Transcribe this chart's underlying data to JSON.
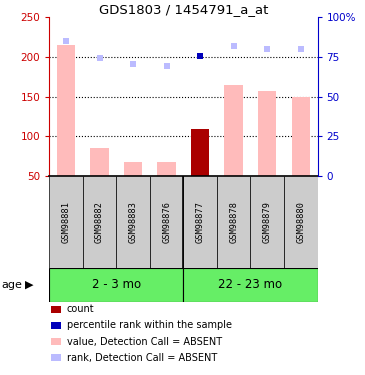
{
  "title": "GDS1803 / 1454791_a_at",
  "samples": [
    "GSM98881",
    "GSM98882",
    "GSM98883",
    "GSM98876",
    "GSM98877",
    "GSM98878",
    "GSM98879",
    "GSM98880"
  ],
  "bar_values": [
    215,
    85,
    68,
    68,
    109,
    165,
    157,
    149
  ],
  "bar_colors": [
    "#ffbbbb",
    "#ffbbbb",
    "#ffbbbb",
    "#ffbbbb",
    "#aa0000",
    "#ffbbbb",
    "#ffbbbb",
    "#ffbbbb"
  ],
  "rank_dots": [
    220,
    198,
    191,
    188,
    201,
    214,
    210,
    210
  ],
  "rank_dot_colors": [
    "#bbbbff",
    "#bbbbff",
    "#bbbbff",
    "#bbbbff",
    "#0000bb",
    "#bbbbff",
    "#bbbbff",
    "#bbbbff"
  ],
  "ylim_left": [
    50,
    250
  ],
  "ylim_right": [
    0,
    100
  ],
  "yticks_left": [
    50,
    100,
    150,
    200,
    250
  ],
  "yticks_right": [
    0,
    25,
    50,
    75,
    100
  ],
  "ytick_labels_left": [
    "50",
    "100",
    "150",
    "200",
    "250"
  ],
  "ytick_labels_right": [
    "0",
    "25",
    "50",
    "75",
    "100%"
  ],
  "hlines": [
    100,
    150,
    200
  ],
  "left_axis_color": "#cc0000",
  "right_axis_color": "#0000cc",
  "group1_label": "2 - 3 mo",
  "group1_count": 4,
  "group2_label": "22 - 23 mo",
  "group2_count": 4,
  "group_color": "#66ee66",
  "age_label": "age",
  "legend": [
    {
      "color": "#aa0000",
      "label": "count"
    },
    {
      "color": "#0000bb",
      "label": "percentile rank within the sample"
    },
    {
      "color": "#ffbbbb",
      "label": "value, Detection Call = ABSENT"
    },
    {
      "color": "#bbbbff",
      "label": "rank, Detection Call = ABSENT"
    }
  ],
  "base_value": 50,
  "sample_box_color": "#cccccc",
  "bar_width": 0.55
}
